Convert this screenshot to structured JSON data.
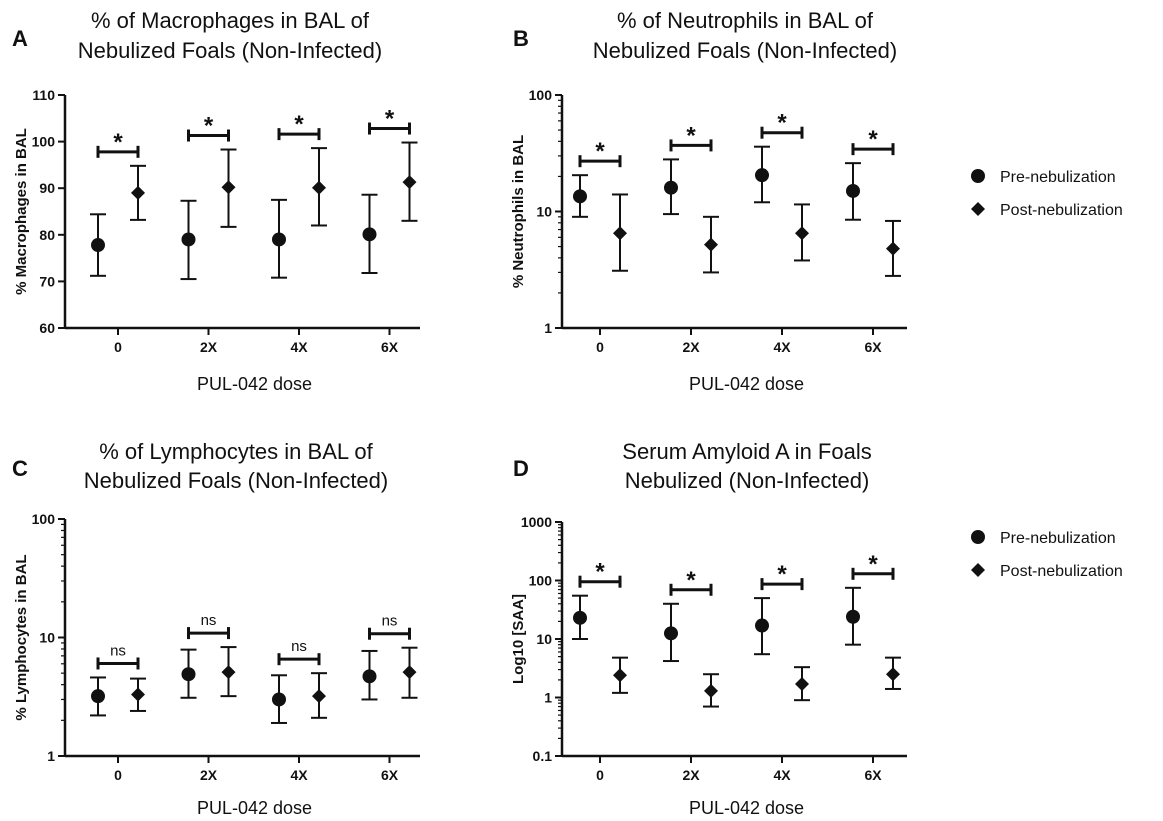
{
  "chart_data": [
    {
      "type": "scatter",
      "panel": "A",
      "title_lines": [
        "% of Macrophages in BAL of",
        "Nebulized Foals (Non-Infected)"
      ],
      "ylabel": "% Macrophages in BAL",
      "xlabel": "PUL-042 dose",
      "scale": "linear",
      "ylim": [
        60,
        110
      ],
      "yticks": [
        "60",
        "70",
        "80",
        "90",
        "100",
        "110"
      ],
      "ytick_values": [
        60,
        70,
        80,
        90,
        100,
        110
      ],
      "categories": [
        "0",
        "2X",
        "4X",
        "6X"
      ],
      "series": [
        {
          "marker": "circle",
          "mean": [
            77.8,
            79.0,
            79.0,
            80.1
          ],
          "lower": [
            71.2,
            70.5,
            70.8,
            71.8
          ],
          "upper": [
            84.4,
            87.3,
            87.5,
            88.6
          ]
        },
        {
          "marker": "diamond",
          "mean": [
            89.0,
            90.2,
            90.1,
            91.3
          ],
          "lower": [
            83.2,
            81.7,
            82.0,
            83.0
          ],
          "upper": [
            94.8,
            98.3,
            98.6,
            99.8
          ]
        }
      ],
      "significance": [
        "*",
        "*",
        "*",
        "*"
      ]
    },
    {
      "type": "scatter",
      "panel": "B",
      "title_lines": [
        "% of Neutrophils in BAL of",
        "Nebulized Foals (Non-Infected)"
      ],
      "ylabel": "% Neutrophils in BAL",
      "xlabel": "PUL-042 dose",
      "scale": "log",
      "ylim": [
        1,
        100
      ],
      "yticks": [
        "1",
        "10",
        "100"
      ],
      "ytick_values": [
        1,
        10,
        100
      ],
      "categories": [
        "0",
        "2X",
        "4X",
        "6X"
      ],
      "series": [
        {
          "marker": "circle",
          "mean": [
            13.5,
            16.0,
            20.5,
            15.0
          ],
          "lower": [
            9.0,
            9.5,
            12.0,
            8.5
          ],
          "upper": [
            20.5,
            28.0,
            36.0,
            26.0
          ]
        },
        {
          "marker": "diamond",
          "mean": [
            6.5,
            5.2,
            6.5,
            4.8
          ],
          "lower": [
            3.1,
            3.0,
            3.8,
            2.8
          ],
          "upper": [
            14.0,
            9.0,
            11.5,
            8.3
          ]
        }
      ],
      "significance": [
        "*",
        "*",
        "*",
        "*"
      ]
    },
    {
      "type": "scatter",
      "panel": "C",
      "title_lines": [
        "% of Lymphocytes in BAL of",
        "Nebulized Foals (Non-Infected)"
      ],
      "ylabel": "% Lymphocytes in BAL",
      "xlabel": "PUL-042 dose",
      "scale": "log",
      "ylim": [
        1,
        100
      ],
      "yticks": [
        "1",
        "10",
        "100"
      ],
      "ytick_values": [
        1,
        10,
        100
      ],
      "categories": [
        "0",
        "2X",
        "4X",
        "6X"
      ],
      "series": [
        {
          "marker": "circle",
          "mean": [
            3.2,
            4.9,
            3.0,
            4.7
          ],
          "lower": [
            2.2,
            3.1,
            1.9,
            3.0
          ],
          "upper": [
            4.6,
            7.9,
            4.8,
            7.7
          ]
        },
        {
          "marker": "diamond",
          "mean": [
            3.3,
            5.1,
            3.2,
            5.1
          ],
          "lower": [
            2.4,
            3.2,
            2.1,
            3.1
          ],
          "upper": [
            4.5,
            8.3,
            5.0,
            8.2
          ]
        }
      ],
      "significance": [
        "ns",
        "ns",
        "ns",
        "ns"
      ]
    },
    {
      "type": "scatter",
      "panel": "D",
      "title_lines": [
        "Serum Amyloid A in Foals",
        "Nebulized (Non-Infected)"
      ],
      "ylabel": "Log10 [SAA]",
      "xlabel": "PUL-042 dose",
      "scale": "log",
      "ylim": [
        0.1,
        1000
      ],
      "yticks": [
        "0.1",
        "1",
        "10",
        "100",
        "1000"
      ],
      "ytick_values": [
        0.1,
        1,
        10,
        100,
        1000
      ],
      "categories": [
        "0",
        "2X",
        "4X",
        "6X"
      ],
      "series": [
        {
          "marker": "circle",
          "mean": [
            23,
            12.5,
            17,
            24
          ],
          "lower": [
            10,
            4.2,
            5.5,
            8.0
          ],
          "upper": [
            55,
            40,
            50,
            75
          ]
        },
        {
          "marker": "diamond",
          "mean": [
            2.4,
            1.3,
            1.7,
            2.5
          ],
          "lower": [
            1.2,
            0.7,
            0.9,
            1.4
          ],
          "upper": [
            4.8,
            2.5,
            3.3,
            4.8
          ]
        }
      ],
      "significance": [
        "*",
        "*",
        "*",
        "*"
      ]
    }
  ],
  "legends": [
    {
      "entries": [
        {
          "marker": "circle",
          "label": "Pre-nebulization"
        },
        {
          "marker": "diamond",
          "label": "Post-nebulization"
        }
      ]
    },
    {
      "entries": [
        {
          "marker": "circle",
          "label": "Pre-nebulization"
        },
        {
          "marker": "diamond",
          "label": "Post-nebulization"
        }
      ]
    }
  ],
  "colors": {
    "ink": "#111111",
    "background": "#ffffff"
  }
}
